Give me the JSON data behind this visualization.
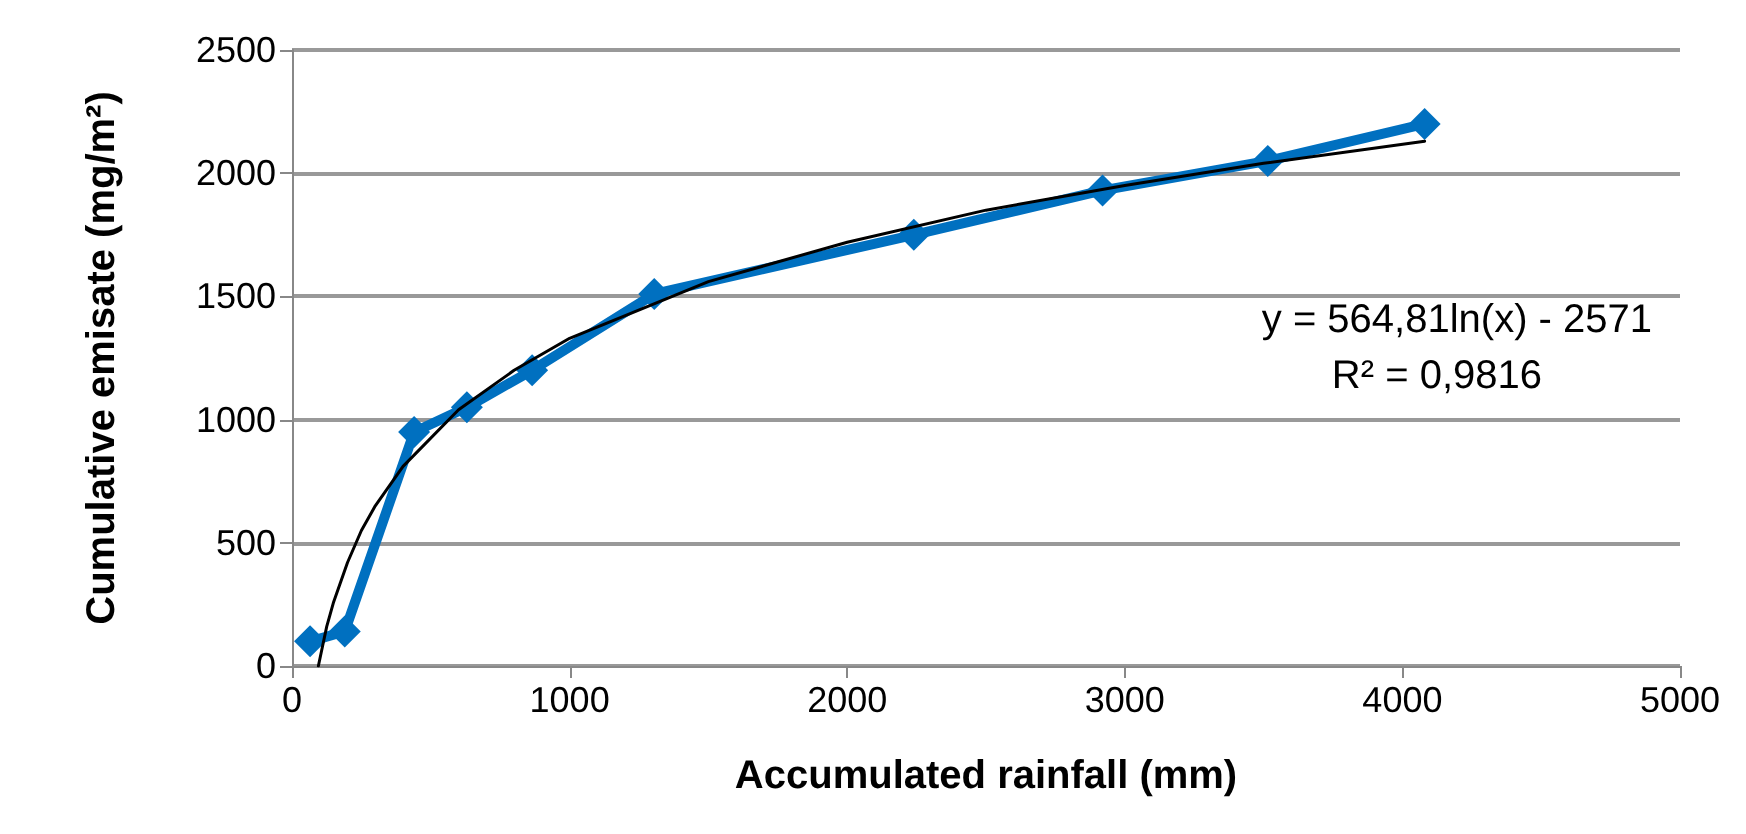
{
  "chart_data": {
    "type": "line",
    "xlabel": "Accumulated rainfall (mm)",
    "ylabel": "Cumulative emisate (mg/m²)",
    "x": [
      65,
      190,
      440,
      630,
      865,
      1305,
      2240,
      2920,
      3515,
      4080
    ],
    "series": [
      {
        "color": "#0070c0",
        "values": [
          100,
          140,
          950,
          1050,
          1200,
          1510,
          1750,
          1930,
          2050,
          2200
        ],
        "marker": "diamond"
      },
      {
        "color": "#000000",
        "x": [
          95,
          110,
          125,
          150,
          200,
          250,
          300,
          400,
          600,
          800,
          1000,
          1500,
          2000,
          2500,
          3000,
          3500,
          4080
        ],
        "values": [
          0,
          80,
          160,
          260,
          420,
          550,
          650,
          810,
          1040,
          1200,
          1330,
          1560,
          1720,
          1850,
          1950,
          2040,
          2130
        ],
        "marker": "none"
      }
    ],
    "annotations": [
      "y = 564,81ln(x) - 2571",
      "R² = 0,9816"
    ],
    "xlim": [
      0,
      5000
    ],
    "xticks": [
      0,
      1000,
      2000,
      3000,
      4000,
      5000
    ],
    "ylim": [
      0,
      2500
    ],
    "yticks": [
      0,
      500,
      1000,
      1500,
      2000,
      2500
    ],
    "grid": "y"
  }
}
